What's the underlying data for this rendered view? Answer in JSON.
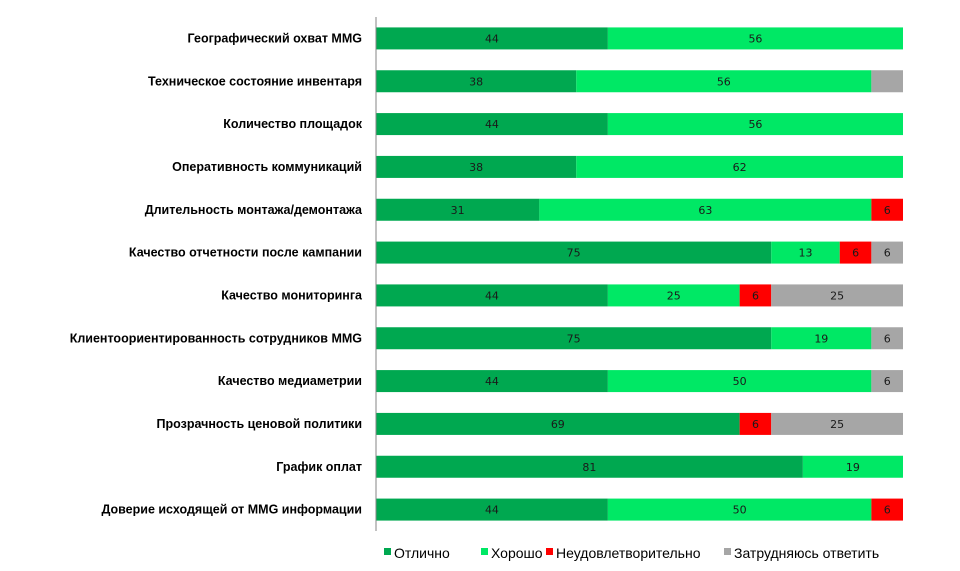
{
  "chart_data": {
    "type": "bar",
    "orientation": "horizontal",
    "stacked": true,
    "xlim": [
      0,
      100
    ],
    "grid": false,
    "legend_position": "bottom",
    "categories": [
      "Географический охват MMG",
      "Техническое состояние инвентаря",
      "Количество площадок",
      "Оперативность коммуникаций",
      "Длительность  монтажа/демонтажа",
      "Качество отчетности после кампании",
      "Качество мониторинга",
      "Клиентоориентированность  сотрудников MMG",
      "Качество медиаметрии",
      "Прозрачность ценовой политики",
      "График оплат",
      "Доверие исходящей от MMG информации"
    ],
    "series": [
      {
        "name": "Отлично",
        "color": "#00a850",
        "values": [
          44,
          38,
          44,
          38,
          31,
          75,
          44,
          75,
          44,
          69,
          81,
          44
        ]
      },
      {
        "name": "Хорошо",
        "color": "#00e865",
        "values": [
          56,
          56,
          56,
          62,
          63,
          13,
          25,
          19,
          50,
          0,
          19,
          50
        ]
      },
      {
        "name": "Неудовлетворительно",
        "color": "#ff0000",
        "values": [
          0,
          0,
          0,
          0,
          6,
          6,
          6,
          0,
          0,
          6,
          0,
          6
        ]
      },
      {
        "name": "Затрудняюсь ответить",
        "color": "#a6a6a6",
        "values": [
          0,
          6,
          0,
          0,
          0,
          6,
          25,
          6,
          6,
          25,
          0,
          0
        ]
      }
    ],
    "unlabeled_segments": [
      [
        1,
        3
      ]
    ]
  }
}
